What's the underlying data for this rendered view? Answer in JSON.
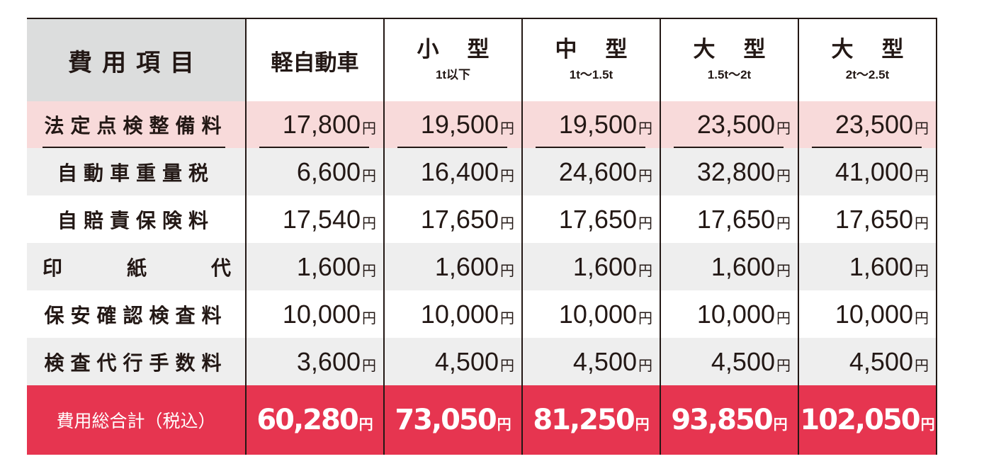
{
  "table": {
    "header": {
      "item_label": "費用項目",
      "columns": [
        {
          "name": "軽自動車",
          "sub": ""
        },
        {
          "name": "小型",
          "sub": "1t以下"
        },
        {
          "name": "中型",
          "sub": "1t〜1.5t"
        },
        {
          "name": "大型",
          "sub": "1.5t〜2t"
        },
        {
          "name": "大型",
          "sub": "2t〜2.5t"
        }
      ]
    },
    "currency": "円",
    "rows": [
      {
        "label": "法定点検整備料",
        "values": [
          "17,800",
          "19,500",
          "19,500",
          "23,500",
          "23,500"
        ]
      },
      {
        "label": "自動車重量税",
        "values": [
          "6,600",
          "16,400",
          "24,600",
          "32,800",
          "41,000"
        ]
      },
      {
        "label": "自賠責保険料",
        "values": [
          "17,540",
          "17,650",
          "17,650",
          "17,650",
          "17,650"
        ]
      },
      {
        "label": "印紙代",
        "label_chars": [
          "印",
          "紙",
          "代"
        ],
        "values": [
          "1,600",
          "1,600",
          "1,600",
          "1,600",
          "1,600"
        ]
      },
      {
        "label": "保安確認検査料",
        "values": [
          "10,000",
          "10,000",
          "10,000",
          "10,000",
          "10,000"
        ]
      },
      {
        "label": "検査代行手数料",
        "values": [
          "3,600",
          "4,500",
          "4,500",
          "4,500",
          "4,500"
        ]
      }
    ],
    "total": {
      "label": "費用総合計（税込）",
      "values": [
        "60,280",
        "73,050",
        "81,250",
        "93,850",
        "102,050"
      ]
    }
  },
  "colors": {
    "header_item_bg": "#dcdddd",
    "highlight_row_bg": "#f8dada",
    "stripe_bg": "#eeeeee",
    "total_bg": "#e63550",
    "text": "#231815"
  }
}
